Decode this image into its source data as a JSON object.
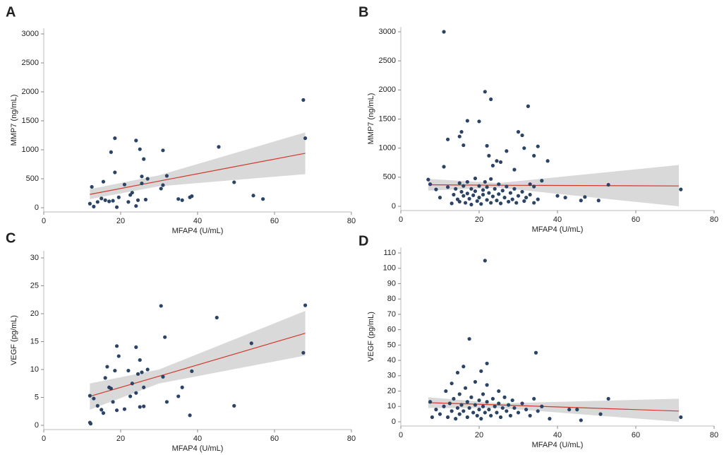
{
  "chart_data": [
    {
      "type": "scatter",
      "label": "A",
      "xlabel": "MFAP4 (U/mL)",
      "ylabel": "MMP7 (ng/mL)",
      "color": "#2b4466",
      "fit_color": "#d03a2c",
      "band_color": "#d9d9d9",
      "xlim": [
        0,
        80
      ],
      "xticks": [
        0,
        20,
        40,
        60,
        80
      ],
      "ylim": [
        0,
        3000
      ],
      "yticks": [
        0,
        500,
        1000,
        1500,
        2000,
        2500,
        3000
      ],
      "x": [
        12,
        12.5,
        13,
        14,
        15,
        15.5,
        16,
        17,
        17.5,
        18,
        18.5,
        18.5,
        19,
        19.5,
        21,
        22,
        22.5,
        23,
        24,
        24,
        24.5,
        25,
        25.5,
        25.5,
        26,
        26.5,
        27,
        30.5,
        31,
        31,
        32,
        35,
        36,
        38,
        38.5,
        45.5,
        49.5,
        54.5,
        57,
        67.5,
        68
      ],
      "values": [
        70,
        360,
        20,
        100,
        160,
        450,
        130,
        110,
        960,
        120,
        1200,
        610,
        10,
        180,
        400,
        100,
        220,
        260,
        1160,
        30,
        130,
        1010,
        540,
        420,
        840,
        140,
        500,
        330,
        990,
        390,
        550,
        150,
        130,
        180,
        200,
        1050,
        440,
        210,
        150,
        1860,
        1200
      ],
      "fit": {
        "x": [
          12,
          30,
          68
        ],
        "y": [
          230,
          460,
          940
        ],
        "ci_lower": [
          150,
          370,
          580
        ],
        "ci_upper": [
          320,
          560,
          1300
        ]
      }
    },
    {
      "type": "scatter",
      "label": "B",
      "xlabel": "MFAP4 (U/mL)",
      "ylabel": "MMP7 (ng/mL)",
      "color": "#2b4466",
      "fit_color": "#d03a2c",
      "band_color": "#d9d9d9",
      "xlim": [
        0,
        80
      ],
      "xticks": [
        0,
        20,
        40,
        60,
        80
      ],
      "ylim": [
        0,
        3000
      ],
      "yticks": [
        0,
        500,
        1000,
        1500,
        2000,
        2500,
        3000
      ],
      "x": [
        11,
        21.5,
        23,
        32.5,
        20,
        17,
        15.5,
        15,
        16,
        12,
        11,
        7,
        7.5,
        22,
        22.5,
        23.5,
        24.5,
        25.5,
        27,
        29,
        30,
        31,
        31.5,
        34,
        35,
        36,
        37.5,
        33,
        34,
        40,
        42,
        46,
        47,
        50.5,
        53,
        71.5,
        13,
        13.5,
        14,
        14.5,
        15,
        15,
        15.5,
        16,
        16,
        16.5,
        17,
        17,
        17.5,
        18,
        18,
        18.5,
        19,
        19,
        19.5,
        20,
        20,
        20.5,
        21,
        21,
        21.5,
        22,
        22,
        22.5,
        23,
        23,
        23.5,
        24,
        24.5,
        25,
        25,
        25.5,
        26,
        26.5,
        27,
        27.5,
        28,
        28.5,
        29,
        29.5,
        30,
        31,
        31.5,
        32,
        33,
        34,
        35,
        9,
        10,
        12
      ],
      "values": [
        3000,
        1970,
        1840,
        1720,
        1460,
        1470,
        1280,
        1200,
        1050,
        1150,
        680,
        460,
        380,
        1040,
        870,
        700,
        780,
        760,
        950,
        630,
        1280,
        1220,
        1000,
        870,
        1030,
        440,
        780,
        380,
        340,
        180,
        150,
        100,
        160,
        100,
        370,
        290,
        50,
        200,
        300,
        120,
        400,
        80,
        250,
        180,
        350,
        60,
        220,
        420,
        130,
        300,
        30,
        190,
        260,
        480,
        90,
        350,
        150,
        40,
        280,
        200,
        420,
        110,
        330,
        230,
        60,
        470,
        170,
        300,
        100,
        380,
        210,
        50,
        270,
        150,
        340,
        80,
        230,
        120,
        300,
        60,
        180,
        250,
        90,
        150,
        200,
        60,
        120,
        290,
        150,
        330
      ],
      "fit": {
        "x": [
          7,
          25,
          71
        ],
        "y": [
          370,
          362,
          350
        ],
        "ci_lower": [
          270,
          320,
          0
        ],
        "ci_upper": [
          470,
          400,
          710
        ]
      }
    },
    {
      "type": "scatter",
      "label": "C",
      "xlabel": "MFAP4 (U/mL)",
      "ylabel": "VEGF (pg/mL)",
      "color": "#2b4466",
      "fit_color": "#d03a2c",
      "band_color": "#d9d9d9",
      "xlim": [
        0,
        80
      ],
      "xticks": [
        0,
        20,
        40,
        60,
        80
      ],
      "ylim": [
        0,
        30
      ],
      "yticks": [
        0,
        5,
        10,
        15,
        20,
        25,
        30
      ],
      "x": [
        12,
        12,
        12.2,
        13,
        14,
        15,
        15.5,
        16,
        16.5,
        17,
        17.5,
        18,
        18.5,
        19,
        19.5,
        19,
        21,
        22,
        22.5,
        23,
        24,
        24,
        24.5,
        25,
        25,
        25.5,
        26,
        26,
        27,
        30.5,
        31,
        31.5,
        32,
        35,
        36,
        38,
        38.5,
        45,
        49.5,
        54,
        67.5,
        68
      ],
      "values": [
        5.3,
        0.5,
        0.3,
        4.8,
        3.5,
        2.8,
        2.2,
        8.5,
        10.5,
        6.8,
        6.6,
        4.2,
        9.8,
        14.2,
        12.4,
        2.7,
        2.9,
        9.8,
        5.2,
        7.5,
        14,
        5.8,
        9.2,
        3.3,
        11.7,
        9.5,
        6.8,
        3.4,
        10,
        21.4,
        8.7,
        15.8,
        4.2,
        5.2,
        6.8,
        1.8,
        9.7,
        19.3,
        3.5,
        14.7,
        13,
        21.5
      ],
      "fit": {
        "x": [
          12,
          30,
          68
        ],
        "y": [
          5.2,
          8.8,
          16.5
        ],
        "ci_lower": [
          2.8,
          7.5,
          12.5
        ],
        "ci_upper": [
          7.5,
          10,
          20.5
        ]
      }
    },
    {
      "type": "scatter",
      "label": "D",
      "xlabel": "MFAP4 (U/mL)",
      "ylabel": "VEGF (pg/mL)",
      "color": "#2b4466",
      "fit_color": "#d03a2c",
      "band_color": "#d9d9d9",
      "xlim": [
        0,
        80
      ],
      "xticks": [
        0,
        20,
        40,
        60,
        80
      ],
      "ylim": [
        0,
        110
      ],
      "yticks": [
        0,
        10,
        20,
        30,
        40,
        50,
        60,
        70,
        80,
        90,
        100,
        110
      ],
      "x": [
        21.5,
        17.5,
        34.5,
        22,
        20.5,
        16,
        14.5,
        7.5,
        8,
        53,
        71.5,
        46,
        51,
        43,
        45,
        38,
        9,
        10,
        11,
        12,
        12.5,
        13,
        13.5,
        14,
        14.5,
        15,
        15,
        15.5,
        16,
        16.5,
        17,
        17,
        17.5,
        18,
        18.5,
        19,
        19,
        19.5,
        20,
        20,
        20.5,
        21,
        21,
        21.5,
        22,
        22,
        22.5,
        23,
        23.5,
        24,
        24.5,
        25,
        25,
        25.5,
        26,
        26.5,
        27,
        27.5,
        28,
        28.5,
        29,
        30,
        31,
        32,
        33,
        34,
        35,
        36,
        11.5,
        13
      ],
      "values": [
        105,
        54,
        45,
        38,
        33,
        36,
        32,
        13,
        3,
        15,
        3,
        1,
        5,
        8,
        8,
        2,
        8,
        5,
        10,
        3,
        12,
        7,
        15,
        2,
        9,
        18,
        5,
        11,
        7,
        22,
        13,
        3,
        9,
        16,
        6,
        11,
        26,
        4,
        14,
        8,
        2,
        18,
        10,
        6,
        13,
        24,
        8,
        4,
        15,
        10,
        6,
        20,
        12,
        3,
        9,
        16,
        7,
        11,
        4,
        14,
        9,
        6,
        12,
        8,
        4,
        15,
        7,
        10,
        20,
        25
      ],
      "fit": {
        "x": [
          7,
          25,
          71
        ],
        "y": [
          12.5,
          11,
          7
        ],
        "ci_lower": [
          9,
          9,
          0
        ],
        "ci_upper": [
          16,
          12,
          15
        ]
      }
    }
  ]
}
